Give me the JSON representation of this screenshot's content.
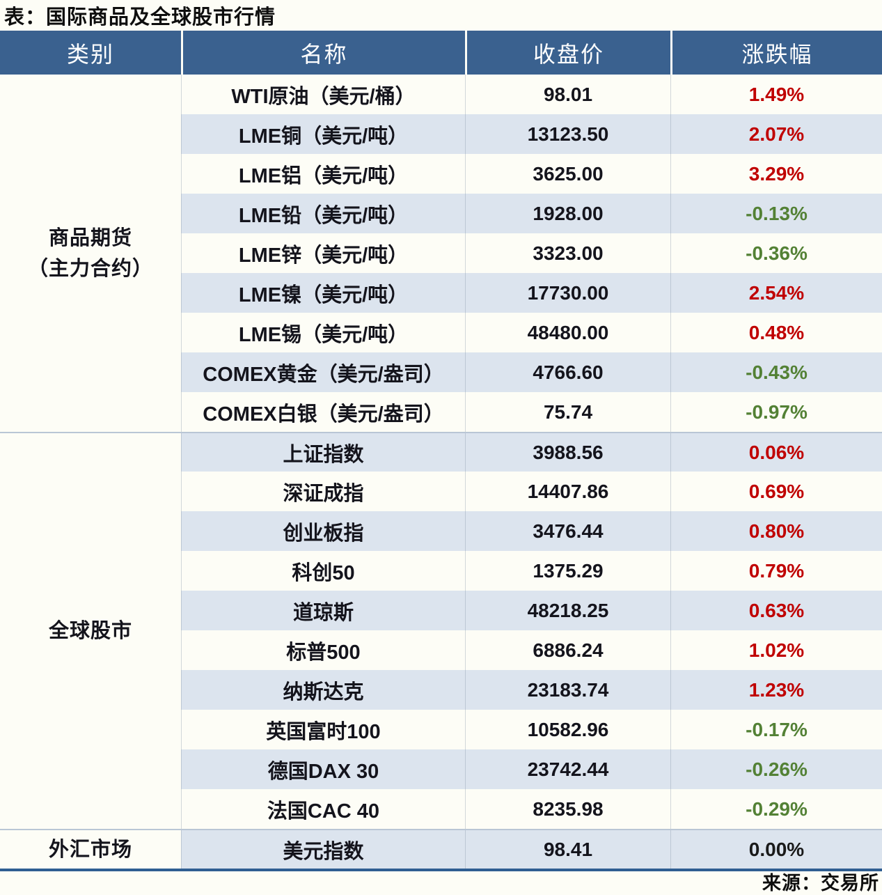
{
  "title": "表：国际商品及全球股市行情",
  "source_note": "来源：交易所",
  "colors": {
    "header_bg": "#3a618f",
    "header_text": "#ffffff",
    "stripe_row": "#dce4ee",
    "plain_row": "#fdfdf6",
    "gain_red": "#c00000",
    "loss_green": "#538135",
    "flat_black": "#1a1a1a",
    "bottom_border_blue": "#2f5e92"
  },
  "chart_data": {
    "type": "table",
    "columns": [
      "类别",
      "名称",
      "收盘价",
      "涨跌幅"
    ],
    "sections": [
      {
        "category_lines": [
          "商品期货",
          "（主力合约）"
        ],
        "rows": [
          [
            "WTI原油（美元/桶）",
            "98.01",
            "1.49%"
          ],
          [
            "LME铜（美元/吨）",
            "13123.50",
            "2.07%"
          ],
          [
            "LME铝（美元/吨）",
            "3625.00",
            "3.29%"
          ],
          [
            "LME铅（美元/吨）",
            "1928.00",
            "-0.13%"
          ],
          [
            "LME锌（美元/吨）",
            "3323.00",
            "-0.36%"
          ],
          [
            "LME镍（美元/吨）",
            "17730.00",
            "2.54%"
          ],
          [
            "LME锡（美元/吨）",
            "48480.00",
            "0.48%"
          ],
          [
            "COMEX黄金（美元/盎司）",
            "4766.60",
            "-0.43%"
          ],
          [
            "COMEX白银（美元/盎司）",
            "75.74",
            "-0.97%"
          ]
        ]
      },
      {
        "category_lines": [
          "全球股市"
        ],
        "rows": [
          [
            "上证指数",
            "3988.56",
            "0.06%"
          ],
          [
            "深证成指",
            "14407.86",
            "0.69%"
          ],
          [
            "创业板指",
            "3476.44",
            "0.80%"
          ],
          [
            "科创50",
            "1375.29",
            "0.79%"
          ],
          [
            "道琼斯",
            "48218.25",
            "0.63%"
          ],
          [
            "标普500",
            "6886.24",
            "1.02%"
          ],
          [
            "纳斯达克",
            "23183.74",
            "1.23%"
          ],
          [
            "英国富时100",
            "10582.96",
            "-0.17%"
          ],
          [
            "德国DAX 30",
            "23742.44",
            "-0.26%"
          ],
          [
            "法国CAC 40",
            "8235.98",
            "-0.29%"
          ]
        ]
      },
      {
        "category_lines": [
          "外汇市场"
        ],
        "rows": [
          [
            "美元指数",
            "98.41",
            "0.00%"
          ]
        ]
      }
    ]
  }
}
